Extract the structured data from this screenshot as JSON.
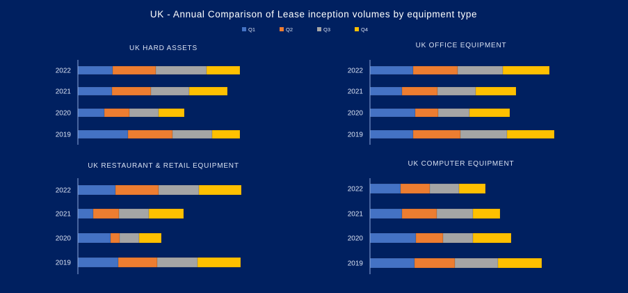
{
  "chart_data": {
    "title": "UK - Annual Comparison of Lease inception volumes by equipment type",
    "type": "bar",
    "orientation": "horizontal",
    "stacked": true,
    "legend": {
      "placement": "top",
      "entries": [
        "Q1",
        "Q2",
        "Q3",
        "Q4"
      ]
    },
    "colors": {
      "Q1": "#4472C4",
      "Q2": "#ED7D31",
      "Q3": "#A5A5A5",
      "Q4": "#FFC000",
      "background": "#002060",
      "text": "#D9E1F2"
    },
    "x_axis_shown": false,
    "value_units": "relative (no value axis printed)",
    "charts": [
      {
        "title": "UK HARD ASSETS",
        "categories": [
          "2022",
          "2021",
          "2020",
          "2019"
        ],
        "series": [
          {
            "name": "Q1",
            "values": [
              50,
              49,
              38,
              72
            ]
          },
          {
            "name": "Q2",
            "values": [
              62,
              56,
              36,
              64
            ]
          },
          {
            "name": "Q3",
            "values": [
              73,
              55,
              42,
              57
            ]
          },
          {
            "name": "Q4",
            "values": [
              48,
              55,
              37,
              40
            ]
          }
        ]
      },
      {
        "title": "UK OFFICE EQUIPMENT",
        "categories": [
          "2022",
          "2021",
          "2020",
          "2019"
        ],
        "series": [
          {
            "name": "Q1",
            "values": [
              62,
              46,
              65,
              62
            ]
          },
          {
            "name": "Q2",
            "values": [
              64,
              51,
              33,
              68
            ]
          },
          {
            "name": "Q3",
            "values": [
              65,
              55,
              45,
              67
            ]
          },
          {
            "name": "Q4",
            "values": [
              67,
              58,
              58,
              68
            ]
          }
        ]
      },
      {
        "title": "UK RESTAURANT & RETAIL EQUIPMENT",
        "categories": [
          "2022",
          "2021",
          "2020",
          "2019"
        ],
        "series": [
          {
            "name": "Q1",
            "values": [
              54,
              22,
              47,
              58
            ]
          },
          {
            "name": "Q2",
            "values": [
              62,
              37,
              13,
              56
            ]
          },
          {
            "name": "Q3",
            "values": [
              58,
              43,
              28,
              58
            ]
          },
          {
            "name": "Q4",
            "values": [
              61,
              50,
              32,
              62
            ]
          }
        ]
      },
      {
        "title": "UK COMPUTER EQUIPMENT",
        "categories": [
          "2022",
          "2021",
          "2020",
          "2019"
        ],
        "series": [
          {
            "name": "Q1",
            "values": [
              44,
              46,
              66,
              64
            ]
          },
          {
            "name": "Q2",
            "values": [
              42,
              50,
              39,
              58
            ]
          },
          {
            "name": "Q3",
            "values": [
              42,
              52,
              43,
              62
            ]
          },
          {
            "name": "Q4",
            "values": [
              38,
              39,
              55,
              63
            ]
          }
        ]
      }
    ]
  }
}
